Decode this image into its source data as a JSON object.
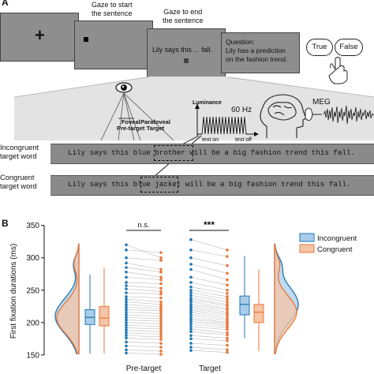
{
  "panel_a": {
    "label": "A",
    "screen_1": {
      "fixation": "+"
    },
    "screen_2": {
      "caption_line1": "Gaze to start",
      "caption_line2": "the sentence"
    },
    "screen_3": {
      "caption_line1": "Gaze to end",
      "caption_line2": "the sentence",
      "sentence": "Lily says this ... fall."
    },
    "screen_4": {
      "line1": "Question:",
      "line2": "Lily has a prediction",
      "line3": "on the fashion trend."
    },
    "responses": {
      "true_label": "True",
      "false_label": "False"
    },
    "foveal_label_1": "Foveal",
    "foveal_label_2": "Pre-target",
    "parafoveal_label_1": "Parafoveal",
    "parafoveal_label_2": "Target",
    "luminance_label": "Luminance",
    "frequency_label": "60 Hz",
    "text_on_label": "text on",
    "text_off_label": "text off",
    "meg_label": "MEG",
    "incongruent_label_1": "Incongruent",
    "incongruent_label_2": "target word",
    "congruent_label_1": "Congruent",
    "congruent_label_2": "target word",
    "incongruent_sentence": {
      "before": "Lily says this blue ",
      "word": "brother",
      "after": " will be a big fashion trend this fall."
    },
    "congruent_sentence": {
      "before": "Lily says this blue ",
      "word": "jacket",
      "after": " will be a big fashion trend this fall."
    }
  },
  "panel_b": {
    "label": "B",
    "chart_data": {
      "type": "scatter",
      "ylabel": "First fixation durations (ms)",
      "yticks": [
        150,
        200,
        250,
        300,
        350
      ],
      "ylim": [
        145,
        352
      ],
      "categories": [
        "Pre-target",
        "Target"
      ],
      "legend": [
        {
          "name": "Incongruent",
          "color": "#1f77b4",
          "fill": "#a9cdea"
        },
        {
          "name": "Congruent",
          "color": "#e8773a",
          "fill": "#f6c4a6"
        }
      ],
      "legend_position": "top-right",
      "significance": {
        "pre_target": "n.s.",
        "target": "***"
      },
      "boxplots": {
        "incongruent": {
          "min": 152,
          "q1": 197,
          "median": 208,
          "q3": 220,
          "max": 274
        },
        "congruent": {
          "min": 152,
          "q1": 195,
          "median": 207,
          "q3": 225,
          "max": 285
        }
      },
      "target_boxplots": {
        "incongruent": {
          "min": 176,
          "q1": 212,
          "median": 228,
          "q3": 241,
          "max": 303
        },
        "congruent": {
          "min": 156,
          "q1": 200,
          "median": 216,
          "q3": 228,
          "max": 282
        }
      },
      "pre_target_pairs": [
        [
          320,
          300
        ],
        [
          312,
          308
        ],
        [
          300,
          296
        ],
        [
          292,
          282
        ],
        [
          285,
          278
        ],
        [
          278,
          270
        ],
        [
          270,
          266
        ],
        [
          262,
          260
        ],
        [
          257,
          253
        ],
        [
          252,
          248
        ],
        [
          246,
          244
        ],
        [
          240,
          238
        ],
        [
          236,
          232
        ],
        [
          232,
          228
        ],
        [
          228,
          224
        ],
        [
          224,
          221
        ],
        [
          220,
          218
        ],
        [
          216,
          214
        ],
        [
          212,
          210
        ],
        [
          208,
          206
        ],
        [
          204,
          202
        ],
        [
          200,
          198
        ],
        [
          196,
          194
        ],
        [
          192,
          190
        ],
        [
          188,
          186
        ],
        [
          184,
          182
        ],
        [
          180,
          178
        ],
        [
          176,
          174
        ],
        [
          170,
          168
        ],
        [
          164,
          162
        ],
        [
          158,
          156
        ],
        [
          153,
          151
        ]
      ],
      "target_pairs": [
        [
          328,
          312
        ],
        [
          312,
          302
        ],
        [
          300,
          288
        ],
        [
          290,
          276
        ],
        [
          282,
          266
        ],
        [
          270,
          258
        ],
        [
          262,
          250
        ],
        [
          255,
          245
        ],
        [
          250,
          240
        ],
        [
          246,
          236
        ],
        [
          242,
          232
        ],
        [
          238,
          228
        ],
        [
          235,
          226
        ],
        [
          232,
          222
        ],
        [
          228,
          220
        ],
        [
          225,
          216
        ],
        [
          222,
          213
        ],
        [
          219,
          210
        ],
        [
          216,
          206
        ],
        [
          212,
          203
        ],
        [
          208,
          200
        ],
        [
          205,
          198
        ],
        [
          202,
          195
        ],
        [
          198,
          192
        ],
        [
          194,
          189
        ],
        [
          190,
          184
        ],
        [
          186,
          181
        ],
        [
          180,
          176
        ],
        [
          175,
          172
        ],
        [
          168,
          165
        ],
        [
          162,
          158
        ],
        [
          157,
          154
        ]
      ]
    }
  }
}
